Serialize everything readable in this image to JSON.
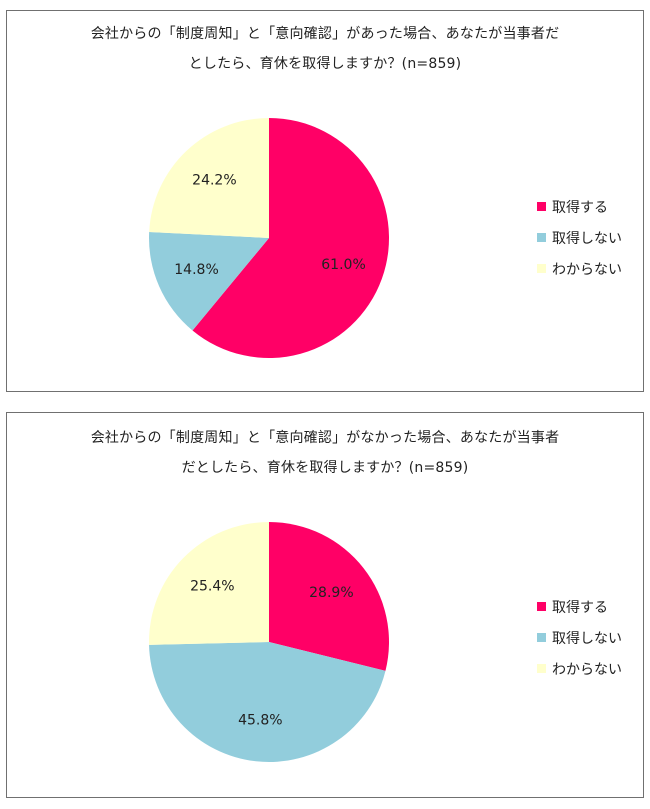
{
  "chart_data": [
    {
      "type": "pie",
      "title_lines": [
        "会社からの「制度周知」と「意向確認」があった場合、あなたが当事者だ",
        "としたら、育休を取得しますか？(n=859)"
      ],
      "categories": [
        "取得する",
        "取得しない",
        "わからない"
      ],
      "values": [
        61.0,
        14.8,
        24.2
      ],
      "labels": [
        "61.0%",
        "14.8%",
        "24.2%"
      ],
      "colors": [
        "#ff0066",
        "#92cddc",
        "#ffffcc"
      ],
      "legend_position": "right"
    },
    {
      "type": "pie",
      "title_lines": [
        "会社からの「制度周知」と「意向確認」がなかった場合、あなたが当事者",
        "だとしたら、育休を取得しますか？(n=859)"
      ],
      "categories": [
        "取得する",
        "取得しない",
        "わからない"
      ],
      "values": [
        28.9,
        45.8,
        25.4
      ],
      "labels": [
        "28.9%",
        "45.8%",
        "25.4%"
      ],
      "colors": [
        "#ff0066",
        "#92cddc",
        "#ffffcc"
      ],
      "legend_position": "right"
    }
  ]
}
